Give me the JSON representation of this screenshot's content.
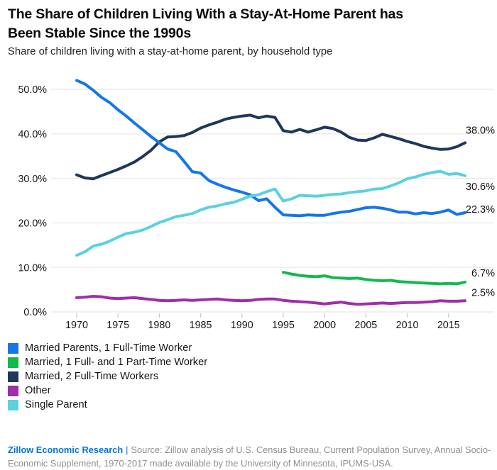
{
  "header": {
    "title_lines": [
      "The Share of Children Living With a Stay-At-Home Parent has",
      "Been Stable Since the 1990s"
    ],
    "subtitle": "Share of children living with a stay-at-home parent, by household type"
  },
  "chart_data": {
    "type": "line",
    "x_axis": {
      "unit": "year",
      "start": 1970,
      "end": 2017,
      "step": 1,
      "tick_labels": [
        "1970",
        "1975",
        "1980",
        "1985",
        "1990",
        "1995",
        "2000",
        "2005",
        "2010",
        "2015"
      ]
    },
    "y_axis": {
      "tick_labels": [
        "0.0%",
        "10.0%",
        "20.0%",
        "30.0%",
        "40.0%",
        "50.0%"
      ],
      "tick_values": [
        0,
        10,
        20,
        30,
        40,
        50
      ],
      "ylim": [
        0,
        55
      ],
      "grid": "horizontal"
    },
    "colors": {
      "grid": "#ebebeb",
      "tick": "#c9c9c9",
      "axis_text": "#161616",
      "end_label_text": "#111111"
    },
    "legend_position": "bottom-left",
    "series": [
      {
        "name": "Married Parents, 1 Full-Time Worker",
        "color": "#1476e8",
        "x_start": 1970,
        "end_label": "22.3%",
        "values": [
          52.0,
          51.2,
          49.8,
          48.2,
          47.0,
          45.4,
          44.0,
          42.4,
          40.9,
          39.4,
          38.0,
          36.6,
          36.0,
          33.8,
          31.5,
          31.2,
          29.5,
          28.7,
          28.0,
          27.4,
          26.9,
          26.3,
          25.0,
          25.4,
          23.5,
          21.8,
          21.7,
          21.6,
          21.8,
          21.7,
          21.7,
          22.1,
          22.4,
          22.6,
          23.0,
          23.4,
          23.5,
          23.3,
          22.9,
          22.4,
          22.4,
          22.0,
          22.3,
          22.1,
          22.4,
          22.9,
          21.9,
          22.3
        ]
      },
      {
        "name": "Married, 1 Full- and 1 Part-Time Worker",
        "color": "#12b94c",
        "x_start": 1995,
        "end_label": "6.7%",
        "values": [
          8.9,
          8.5,
          8.2,
          8.0,
          7.9,
          8.1,
          7.7,
          7.6,
          7.5,
          7.6,
          7.3,
          7.1,
          7.0,
          7.1,
          6.8,
          6.7,
          6.6,
          6.5,
          6.4,
          6.3,
          6.4,
          6.3,
          6.7
        ]
      },
      {
        "name": "Married, 2 Full-Time Workers",
        "color": "#1e375c",
        "x_start": 1970,
        "end_label": "38.0%",
        "values": [
          30.8,
          30.1,
          29.9,
          30.6,
          31.3,
          32.0,
          32.8,
          33.7,
          34.9,
          36.3,
          38.2,
          39.3,
          39.4,
          39.6,
          40.3,
          41.3,
          42.0,
          42.6,
          43.3,
          43.7,
          44.0,
          44.2,
          43.6,
          44.0,
          43.7,
          40.7,
          40.4,
          41.0,
          40.4,
          40.9,
          41.5,
          41.2,
          40.4,
          39.2,
          38.6,
          38.5,
          39.1,
          39.9,
          39.4,
          38.9,
          38.3,
          37.8,
          37.2,
          36.8,
          36.5,
          36.6,
          37.1,
          38.0
        ]
      },
      {
        "name": "Other",
        "color": "#a02daa",
        "x_start": 1970,
        "end_label": "2.5%",
        "values": [
          3.2,
          3.3,
          3.5,
          3.4,
          3.1,
          3.0,
          3.1,
          3.2,
          3.0,
          2.8,
          2.6,
          2.5,
          2.6,
          2.7,
          2.6,
          2.7,
          2.8,
          2.9,
          2.7,
          2.6,
          2.5,
          2.6,
          2.8,
          2.9,
          2.9,
          2.6,
          2.4,
          2.3,
          2.2,
          2.0,
          1.8,
          2.0,
          2.2,
          1.9,
          1.7,
          1.8,
          1.9,
          2.0,
          1.9,
          2.0,
          2.1,
          2.1,
          2.2,
          2.3,
          2.5,
          2.4,
          2.4,
          2.5
        ]
      },
      {
        "name": "Single Parent",
        "color": "#5ad2de",
        "x_start": 1970,
        "end_label": "30.6%",
        "values": [
          12.7,
          13.5,
          14.8,
          15.2,
          15.9,
          16.8,
          17.6,
          17.9,
          18.4,
          19.2,
          20.1,
          20.7,
          21.4,
          21.7,
          22.1,
          22.9,
          23.5,
          23.8,
          24.3,
          24.6,
          25.3,
          26.0,
          26.3,
          27.0,
          27.6,
          24.9,
          25.4,
          26.2,
          26.1,
          26.0,
          26.2,
          26.4,
          26.5,
          26.8,
          27.0,
          27.2,
          27.6,
          27.7,
          28.3,
          29.0,
          29.9,
          30.3,
          30.9,
          31.3,
          31.6,
          30.9,
          31.1,
          30.6
        ]
      }
    ]
  },
  "footer": {
    "brand": "Zillow Economic Research",
    "separator": "|",
    "source": "Source: Zillow analysis of U.S. Census Bureau, Current Population Survey, Annual Socio-Economic Supplement, 1970-2017 made available by the University of Minnesota, IPUMS-USA.",
    "brand_color": "#0074e4",
    "source_color": "#8f8f8f"
  }
}
